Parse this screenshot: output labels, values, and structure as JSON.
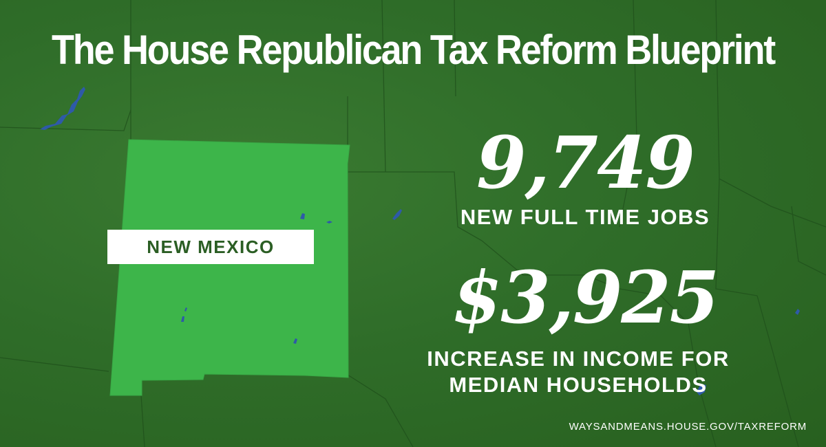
{
  "title": "The House Republican Tax Reform Blueprint",
  "state": {
    "label": "NEW MEXICO",
    "color": "#3db54a"
  },
  "stats": {
    "jobs": {
      "value": "9,749",
      "caption": "NEW FULL TIME JOBS"
    },
    "income": {
      "value": "$3,925",
      "caption_line1": "INCREASE IN INCOME FOR",
      "caption_line2": "MEDIAN HOUSEHOLDS"
    }
  },
  "footer": {
    "url": "WAYSANDMEANS.HOUSE.GOV/TAXREFORM"
  },
  "colors": {
    "background": "#2f6b2a",
    "text": "#ffffff",
    "label_text": "#2b5e24",
    "water": "#2e5aa8"
  }
}
